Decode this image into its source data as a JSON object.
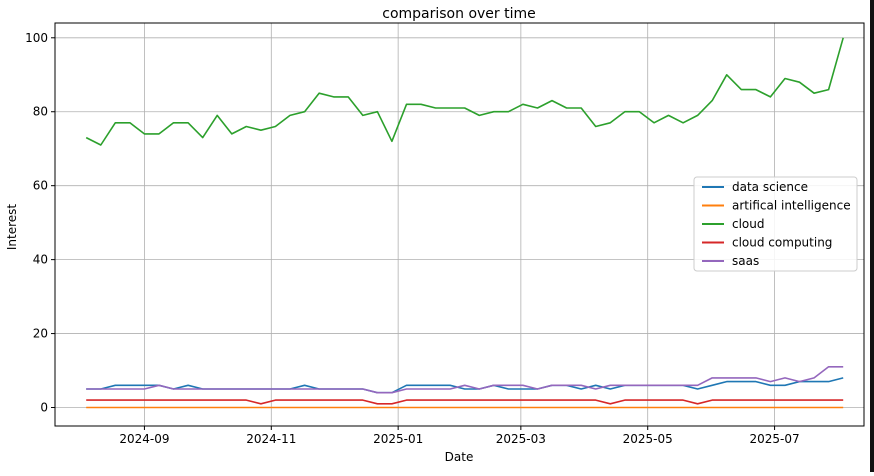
{
  "chart_data": {
    "type": "line",
    "title": "comparison over time",
    "xlabel": "Date",
    "ylabel": "Interest",
    "ylim": [
      -5,
      104
    ],
    "xlim": [
      "2024-07-20",
      "2025-08-13"
    ],
    "y_ticks": [
      0,
      20,
      40,
      60,
      80,
      100
    ],
    "x_ticks": [
      {
        "date": "2024-09-01",
        "label": "2024-09"
      },
      {
        "date": "2024-11-01",
        "label": "2024-11"
      },
      {
        "date": "2025-01-01",
        "label": "2025-01"
      },
      {
        "date": "2025-03-01",
        "label": "2025-03"
      },
      {
        "date": "2025-05-01",
        "label": "2025-05"
      },
      {
        "date": "2025-07-01",
        "label": "2025-07"
      }
    ],
    "grid": true,
    "legend_position": "center-right",
    "dates": [
      "2024-08-04",
      "2024-08-11",
      "2024-08-18",
      "2024-08-25",
      "2024-09-01",
      "2024-09-08",
      "2024-09-15",
      "2024-09-22",
      "2024-09-29",
      "2024-10-06",
      "2024-10-13",
      "2024-10-20",
      "2024-10-27",
      "2024-11-03",
      "2024-11-10",
      "2024-11-17",
      "2024-11-24",
      "2024-12-01",
      "2024-12-08",
      "2024-12-15",
      "2024-12-22",
      "2024-12-29",
      "2025-01-05",
      "2025-01-12",
      "2025-01-19",
      "2025-01-26",
      "2025-02-02",
      "2025-02-09",
      "2025-02-16",
      "2025-02-23",
      "2025-03-02",
      "2025-03-09",
      "2025-03-16",
      "2025-03-23",
      "2025-03-30",
      "2025-04-06",
      "2025-04-13",
      "2025-04-20",
      "2025-04-27",
      "2025-05-04",
      "2025-05-11",
      "2025-05-18",
      "2025-05-25",
      "2025-06-01",
      "2025-06-08",
      "2025-06-15",
      "2025-06-22",
      "2025-06-29",
      "2025-07-06",
      "2025-07-13",
      "2025-07-20",
      "2025-07-27",
      "2025-08-03"
    ],
    "series": [
      {
        "name": "data science",
        "color": "#1f77b4",
        "values": [
          5,
          5,
          6,
          6,
          6,
          6,
          5,
          6,
          5,
          5,
          5,
          5,
          5,
          5,
          5,
          6,
          5,
          5,
          5,
          5,
          4,
          4,
          6,
          6,
          6,
          6,
          5,
          5,
          6,
          5,
          5,
          5,
          6,
          6,
          5,
          6,
          5,
          6,
          6,
          6,
          6,
          6,
          5,
          6,
          7,
          7,
          7,
          6,
          6,
          7,
          7,
          7,
          8
        ]
      },
      {
        "name": "artifical intelligence",
        "color": "#ff7f0e",
        "values": [
          0,
          0,
          0,
          0,
          0,
          0,
          0,
          0,
          0,
          0,
          0,
          0,
          0,
          0,
          0,
          0,
          0,
          0,
          0,
          0,
          0,
          0,
          0,
          0,
          0,
          0,
          0,
          0,
          0,
          0,
          0,
          0,
          0,
          0,
          0,
          0,
          0,
          0,
          0,
          0,
          0,
          0,
          0,
          0,
          0,
          0,
          0,
          0,
          0,
          0,
          0,
          0,
          0
        ]
      },
      {
        "name": "cloud",
        "color": "#2ca02c",
        "values": [
          73,
          71,
          77,
          77,
          74,
          74,
          77,
          77,
          73,
          79,
          74,
          76,
          75,
          76,
          79,
          80,
          85,
          84,
          84,
          79,
          80,
          72,
          82,
          82,
          81,
          81,
          81,
          79,
          80,
          80,
          82,
          81,
          83,
          81,
          81,
          76,
          77,
          80,
          80,
          77,
          79,
          77,
          79,
          83,
          90,
          86,
          86,
          84,
          89,
          88,
          85,
          86,
          100
        ]
      },
      {
        "name": "cloud computing",
        "color": "#d62728",
        "values": [
          2,
          2,
          2,
          2,
          2,
          2,
          2,
          2,
          2,
          2,
          2,
          2,
          1,
          2,
          2,
          2,
          2,
          2,
          2,
          2,
          1,
          1,
          2,
          2,
          2,
          2,
          2,
          2,
          2,
          2,
          2,
          2,
          2,
          2,
          2,
          2,
          1,
          2,
          2,
          2,
          2,
          2,
          1,
          2,
          2,
          2,
          2,
          2,
          2,
          2,
          2,
          2,
          2
        ]
      },
      {
        "name": "saas",
        "color": "#9467bd",
        "values": [
          5,
          5,
          5,
          5,
          5,
          6,
          5,
          5,
          5,
          5,
          5,
          5,
          5,
          5,
          5,
          5,
          5,
          5,
          5,
          5,
          4,
          4,
          5,
          5,
          5,
          5,
          6,
          5,
          6,
          6,
          6,
          5,
          6,
          6,
          6,
          5,
          6,
          6,
          6,
          6,
          6,
          6,
          6,
          8,
          8,
          8,
          8,
          7,
          8,
          7,
          8,
          11,
          11
        ]
      }
    ]
  }
}
